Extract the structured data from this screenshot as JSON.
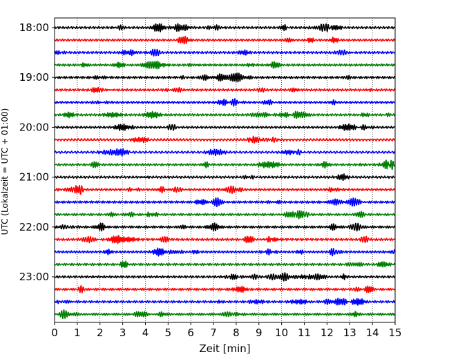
{
  "chart_data": {
    "type": "line",
    "title": "",
    "xlabel": "Zeit  [min]",
    "ylabel": "UTC (Lokalzeit = UTC + 01:00)",
    "xlim": [
      0,
      15
    ],
    "x_ticks": [
      "0",
      "1",
      "2",
      "3",
      "4",
      "5",
      "6",
      "7",
      "8",
      "9",
      "10",
      "11",
      "12",
      "13",
      "14",
      "15"
    ],
    "y_ticks": [
      "18:00",
      "19:00",
      "20:00",
      "21:00",
      "22:00",
      "23:00"
    ],
    "traces_per_hour": 4,
    "trace_minutes": 15,
    "trace_colors": [
      "#000000",
      "#ff0000",
      "#0000ff",
      "#007f00"
    ],
    "grid": "vertical dotted at each minute",
    "series": [
      {
        "name": "18:00",
        "color": "#000000"
      },
      {
        "name": "18:15",
        "color": "#ff0000"
      },
      {
        "name": "18:30",
        "color": "#0000ff"
      },
      {
        "name": "18:45",
        "color": "#007f00"
      },
      {
        "name": "19:00",
        "color": "#000000"
      },
      {
        "name": "19:15",
        "color": "#ff0000"
      },
      {
        "name": "19:30",
        "color": "#0000ff"
      },
      {
        "name": "19:45",
        "color": "#007f00"
      },
      {
        "name": "20:00",
        "color": "#000000"
      },
      {
        "name": "20:15",
        "color": "#ff0000"
      },
      {
        "name": "20:30",
        "color": "#0000ff"
      },
      {
        "name": "20:45",
        "color": "#007f00"
      },
      {
        "name": "21:00",
        "color": "#000000"
      },
      {
        "name": "21:15",
        "color": "#ff0000"
      },
      {
        "name": "21:30",
        "color": "#0000ff"
      },
      {
        "name": "21:45",
        "color": "#007f00"
      },
      {
        "name": "22:00",
        "color": "#000000"
      },
      {
        "name": "22:15",
        "color": "#ff0000"
      },
      {
        "name": "22:30",
        "color": "#0000ff"
      },
      {
        "name": "22:45",
        "color": "#007f00"
      },
      {
        "name": "23:00",
        "color": "#000000"
      },
      {
        "name": "23:15",
        "color": "#ff0000"
      },
      {
        "name": "23:30",
        "color": "#0000ff"
      },
      {
        "name": "23:45",
        "color": "#007f00"
      }
    ]
  }
}
